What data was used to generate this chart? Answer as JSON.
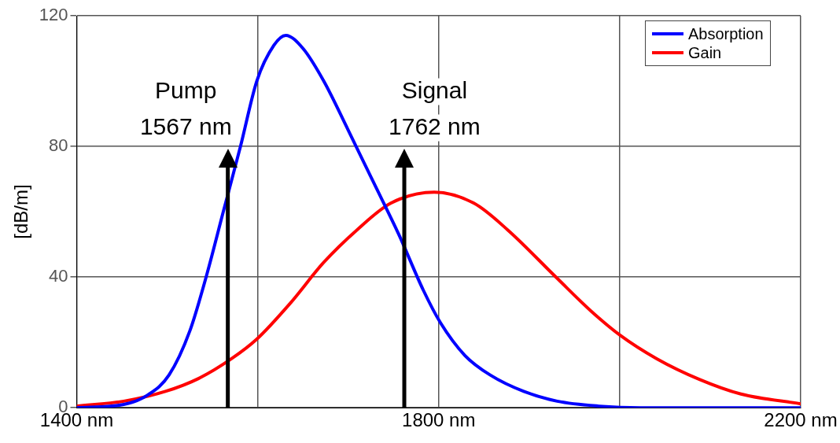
{
  "chart_data": {
    "type": "line",
    "ylabel": "[dB/m]",
    "xlim": [
      1400,
      2200
    ],
    "ylim": [
      0,
      120
    ],
    "xticks": [
      {
        "value": 1400,
        "label": "1400 nm"
      },
      {
        "value": 1600,
        "label": null
      },
      {
        "value": 1800,
        "label": "1800 nm"
      },
      {
        "value": 2000,
        "label": null
      },
      {
        "value": 2200,
        "label": "2200 nm"
      }
    ],
    "yticks": [
      0,
      40,
      80,
      120
    ],
    "grid": true,
    "legend": "top right",
    "marker": "none",
    "line_style": "solid",
    "series": [
      {
        "name": "Absorption",
        "color": "#0000ff",
        "x": [
          1400,
          1452,
          1479,
          1502,
          1525,
          1544,
          1562,
          1581,
          1599,
          1618,
          1631,
          1650,
          1673,
          1700,
          1728,
          1756,
          1783,
          1802,
          1829,
          1857,
          1894,
          1931,
          1977,
          2023,
          2200
        ],
        "values": [
          0,
          1,
          4,
          10,
          23.5,
          41,
          60,
          80,
          100,
          111,
          114,
          110,
          100,
          85,
          69,
          53,
          36,
          26,
          16,
          10,
          5,
          2,
          0.5,
          0,
          0
        ]
      },
      {
        "name": "Gain",
        "color": "#ff0000",
        "x": [
          1400,
          1452,
          1498,
          1535,
          1571,
          1599,
          1636,
          1673,
          1710,
          1747,
          1795,
          1839,
          1876,
          1931,
          1968,
          2000,
          2041,
          2088,
          2134,
          2200
        ],
        "values": [
          0.5,
          2,
          5,
          9,
          15,
          21,
          32,
          44.5,
          54.5,
          62.6,
          66,
          62.6,
          54.5,
          39.6,
          29.7,
          22.3,
          15,
          8.7,
          4.2,
          1.2
        ]
      }
    ],
    "ref_lines": [
      {
        "axis": "x",
        "value": 1567,
        "label": "Pump\n1567 nm",
        "color": "#000000"
      },
      {
        "axis": "x",
        "value": 1762,
        "label": "Signal\n1762 nm",
        "color": "#000000"
      }
    ]
  }
}
